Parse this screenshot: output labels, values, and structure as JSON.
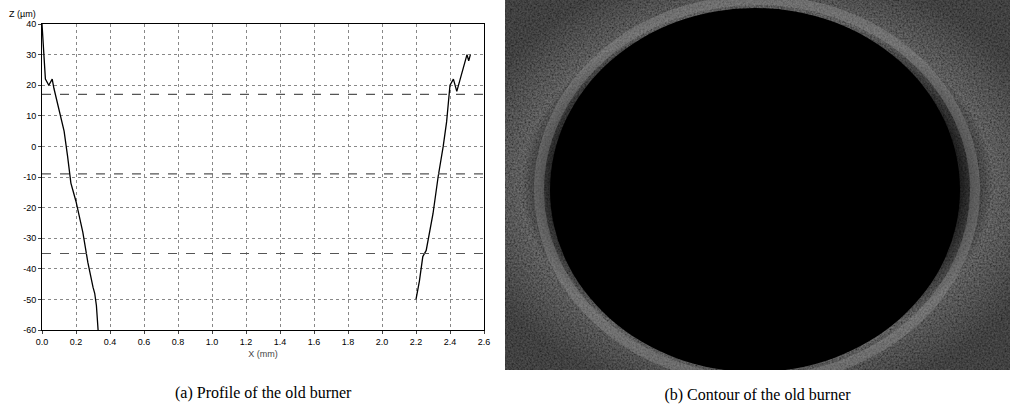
{
  "chart_data": {
    "type": "line",
    "title": "(a) Profile of the old burner",
    "x_label": "X (mm)",
    "y_label": "Z (µm)",
    "x": [
      0.0,
      0.01,
      0.02,
      0.04,
      0.06,
      0.07,
      0.09,
      0.1,
      0.13,
      0.15,
      0.17,
      0.18,
      0.2,
      0.24,
      0.27,
      0.3,
      0.31,
      0.32,
      0.33,
      1.3,
      2.2,
      2.22,
      2.24,
      2.26,
      2.3,
      2.33,
      2.36,
      2.38,
      2.39,
      2.4,
      2.42,
      2.44,
      2.46,
      2.48,
      2.5,
      2.51,
      2.52
    ],
    "values": [
      40,
      30,
      22,
      20,
      22,
      19,
      14,
      12,
      5,
      -3,
      -12,
      -14,
      -18,
      -28,
      -38,
      -46,
      -48,
      -52,
      -60,
      null,
      -50,
      -44,
      -36,
      -34,
      -22,
      -10,
      0,
      8,
      14,
      20,
      22,
      18,
      22,
      26,
      30,
      28,
      30
    ],
    "color": "#000000",
    "hlines": [
      17,
      -9,
      -35
    ],
    "xlim": [
      0,
      2.6
    ],
    "ylim": [
      -60,
      40
    ],
    "xticks": [
      {
        "value": 0,
        "label": "0.0"
      },
      0.2,
      0.4,
      0.6,
      0.8,
      {
        "value": 1,
        "label": "1.0"
      },
      1.2,
      1.4,
      1.6,
      1.8,
      {
        "value": 2,
        "label": "2.0"
      },
      2.2,
      2.4,
      2.6
    ],
    "yticks": [
      -60,
      -50,
      -40,
      -30,
      -20,
      -10,
      0,
      10,
      20,
      30,
      40
    ],
    "grid": true
  },
  "image_panel": {
    "caption": "(b) Contour of the old burner"
  }
}
